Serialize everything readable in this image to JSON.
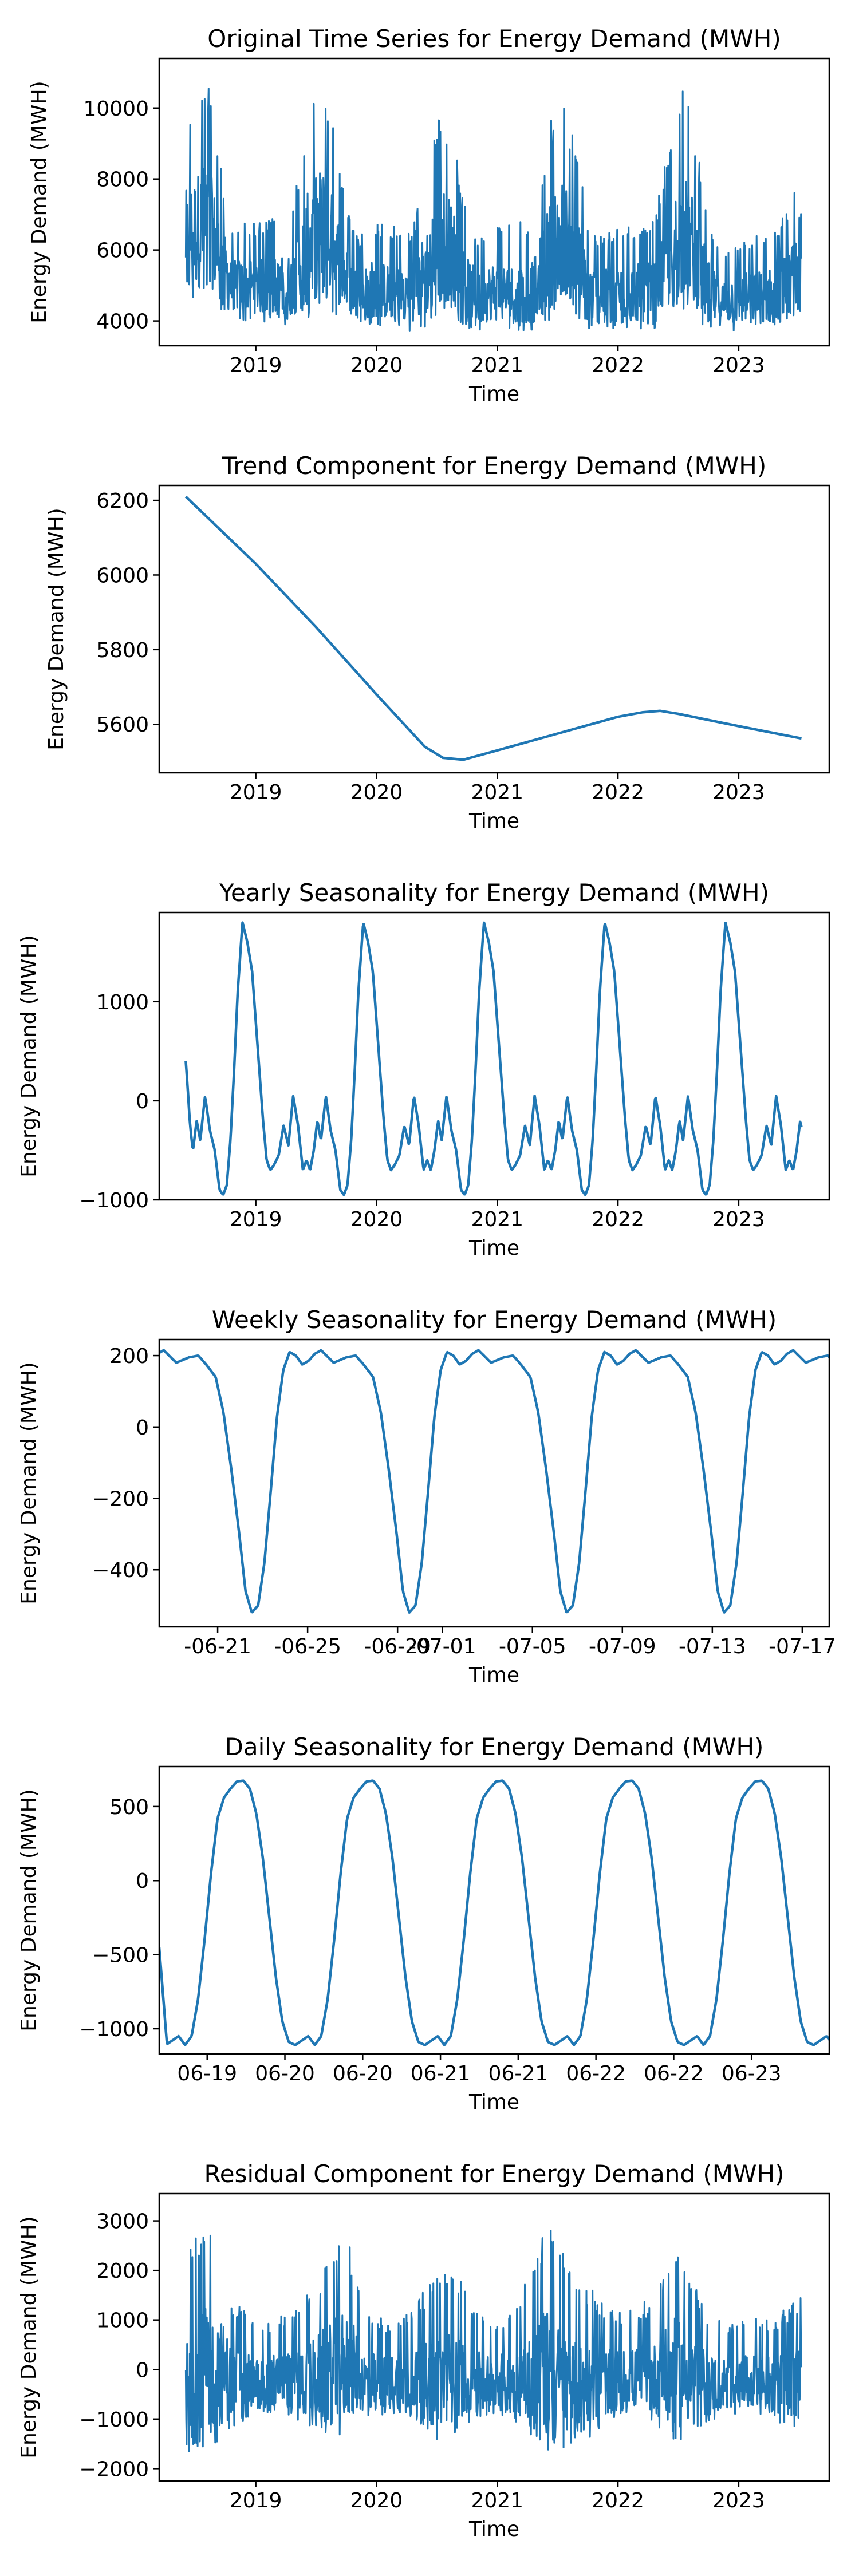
{
  "chart_data": [
    {
      "type": "line",
      "title": "Original Time Series for Energy Demand (MWH)",
      "xlabel": "Time",
      "ylabel": "Energy Demand (MWH)",
      "xlim": [
        2018.2,
        2023.75
      ],
      "ylim": [
        3300,
        11400
      ],
      "xticks": [
        2019,
        2020,
        2021,
        2022,
        2023
      ],
      "xticklabels": [
        "2019",
        "2020",
        "2021",
        "2022",
        "2023"
      ],
      "yticks": [
        4000,
        6000,
        8000,
        10000
      ],
      "yticklabels": [
        "4000",
        "6000",
        "8000",
        "10000"
      ],
      "color": "#1f77b4",
      "grid": false,
      "series": [
        {
          "x": [
            2018.42,
            2018.5,
            2018.6,
            2018.7,
            2018.8,
            2018.9,
            2019.0,
            2019.15,
            2019.3,
            2019.45,
            2019.55,
            2019.65,
            2019.75,
            2019.85,
            2019.95,
            2020.1,
            2020.3,
            2020.45,
            2020.55,
            2020.65,
            2020.75,
            2020.85,
            2020.95,
            2021.1,
            2021.3,
            2021.45,
            2021.55,
            2021.65,
            2021.75,
            2021.85,
            2021.95,
            2022.1,
            2022.3,
            2022.45,
            2022.55,
            2022.65,
            2022.75,
            2022.85,
            2022.95,
            2023.1,
            2023.3,
            2023.45,
            2023.52
          ],
          "y": [
            9500,
            10400,
            11000,
            8600,
            6600,
            6900,
            6800,
            6900,
            7100,
            10200,
            10900,
            9400,
            7300,
            6300,
            6800,
            6700,
            6600,
            9000,
            10100,
            8900,
            7000,
            6300,
            6800,
            6700,
            6900,
            9700,
            10300,
            9000,
            6900,
            6400,
            6600,
            6700,
            6800,
            9700,
            10600,
            9100,
            6900,
            6000,
            6300,
            6400,
            6600,
            7600,
            9300
          ],
          "y_low": [
            4600,
            4400,
            4600,
            4300,
            4100,
            4000,
            4000,
            3900,
            3900,
            4000,
            4300,
            4200,
            4000,
            3900,
            3900,
            3800,
            3700,
            3800,
            4200,
            4100,
            3800,
            3700,
            3800,
            3700,
            3700,
            4000,
            4300,
            4000,
            3700,
            3700,
            3700,
            3800,
            3700,
            4000,
            4300,
            4000,
            3700,
            3700,
            3700,
            3700,
            3700,
            3800,
            3900
          ]
        }
      ]
    },
    {
      "type": "line",
      "title": "Trend Component for Energy Demand (MWH)",
      "xlabel": "Time",
      "ylabel": "Energy Demand (MWH)",
      "xlim": [
        2018.2,
        2023.75
      ],
      "ylim": [
        5470,
        6240
      ],
      "xticks": [
        2019,
        2020,
        2021,
        2022,
        2023
      ],
      "xticklabels": [
        "2019",
        "2020",
        "2021",
        "2022",
        "2023"
      ],
      "yticks": [
        5600,
        5800,
        6000,
        6200
      ],
      "yticklabels": [
        "5600",
        "5800",
        "6000",
        "6200"
      ],
      "color": "#1f77b4",
      "grid": false,
      "series": [
        {
          "x": [
            2018.42,
            2019.0,
            2019.5,
            2020.0,
            2020.4,
            2020.55,
            2020.72,
            2021.0,
            2021.5,
            2022.0,
            2022.2,
            2022.35,
            2022.5,
            2023.0,
            2023.52
          ],
          "y": [
            6210,
            6030,
            5860,
            5680,
            5540,
            5510,
            5505,
            5530,
            5575,
            5620,
            5632,
            5636,
            5628,
            5595,
            5562
          ]
        }
      ]
    },
    {
      "type": "line",
      "title": "Yearly Seasonality for Energy Demand (MWH)",
      "xlabel": "Time",
      "ylabel": "Energy Demand (MWH)",
      "xlim": [
        2018.2,
        2023.75
      ],
      "ylim": [
        -1000,
        1900
      ],
      "xticks": [
        2019,
        2020,
        2021,
        2022,
        2023
      ],
      "xticklabels": [
        "2019",
        "2020",
        "2021",
        "2022",
        "2023"
      ],
      "yticks": [
        -1000,
        0,
        1000
      ],
      "yticklabels": [
        "−1000",
        "0",
        "1000"
      ],
      "color": "#1f77b4",
      "grid": false,
      "series": [
        {
          "x_start": 2018.42,
          "x_end": 2023.52,
          "period": 1.0,
          "cycle_phase": [
            0.0,
            0.03,
            0.06,
            0.09,
            0.12,
            0.16,
            0.2,
            0.24,
            0.28,
            0.31,
            0.34,
            0.37,
            0.4,
            0.43,
            0.47,
            0.51,
            0.55,
            0.58,
            0.61,
            0.64,
            0.67,
            0.7,
            0.73,
            0.77,
            0.81,
            0.85,
            0.89,
            0.93,
            0.97,
            1.0
          ],
          "cycle_values": [
            -600,
            -700,
            -500,
            -200,
            -400,
            50,
            -300,
            -500,
            -900,
            -950,
            -850,
            -400,
            300,
            1100,
            1800,
            1600,
            1300,
            800,
            300,
            -200,
            -600,
            -700,
            -650,
            -550,
            -250,
            -450,
            50,
            -250,
            -700,
            -600
          ],
          "start_value": 400
        }
      ]
    },
    {
      "type": "line",
      "title": "Weekly Seasonality for Energy Demand (MWH)",
      "xlabel": "Time",
      "ylabel": "Energy Demand (MWH)",
      "xlim": [
        18.4,
        48.2
      ],
      "ylim": [
        -560,
        245
      ],
      "xticks": [
        21,
        25,
        29,
        31,
        35,
        39,
        43,
        47
      ],
      "xticklabels": [
        "-06-21",
        "-06-25",
        "-06-29",
        "-07-01",
        "-07-05",
        "-07-09",
        "-07-13",
        "-07-17"
      ],
      "yticks": [
        -400,
        -200,
        0,
        200
      ],
      "yticklabels": [
        "−400",
        "−200",
        "0",
        "200"
      ],
      "color": "#1f77b4",
      "grid": false,
      "series": [
        {
          "period": 7,
          "x_start": 18.4,
          "x_end": 48.2,
          "cycle_x0": 18.6,
          "cycle_phase": [
            0.0,
            0.08,
            0.16,
            0.22,
            0.27,
            0.33,
            0.38,
            0.43,
            0.48,
            0.52,
            0.56,
            0.6,
            0.64,
            0.68,
            0.72,
            0.76,
            0.8,
            0.84,
            0.88,
            0.92,
            0.96,
            1.0
          ],
          "cycle_values": [
            215,
            180,
            195,
            200,
            175,
            140,
            40,
            -120,
            -300,
            -460,
            -520,
            -500,
            -380,
            -180,
            30,
            160,
            210,
            200,
            175,
            185,
            205,
            215
          ]
        }
      ]
    },
    {
      "type": "line",
      "title": "Daily Seasonality for Energy Demand (MWH)",
      "xlabel": "Time",
      "ylabel": "Energy Demand (MWH)",
      "xlim": [
        18.55,
        23.72
      ],
      "ylim": [
        -1170,
        770
      ],
      "xticks": [
        18.92,
        19.52,
        20.12,
        20.72,
        21.32,
        21.92,
        22.52,
        23.12
      ],
      "xticklabels": [
        "06-19",
        "06-20",
        "06-20",
        "06-21",
        "06-21",
        "06-22",
        "06-22",
        "06-23"
      ],
      "yticks": [
        -1000,
        -500,
        0,
        500
      ],
      "yticklabels": [
        "−1000",
        "−500",
        "0",
        "500"
      ],
      "color": "#1f77b4",
      "grid": false,
      "series": [
        {
          "period": 1.0,
          "x_start": 18.55,
          "x_end": 23.72,
          "cycle_x0": 18.7,
          "cycle_phase": [
            0.0,
            0.05,
            0.1,
            0.15,
            0.2,
            0.25,
            0.3,
            0.35,
            0.4,
            0.45,
            0.5,
            0.55,
            0.6,
            0.65,
            0.7,
            0.75,
            0.8,
            0.85,
            0.9,
            0.95,
            1.0
          ],
          "cycle_values": [
            -1050,
            -1110,
            -1050,
            -800,
            -400,
            50,
            420,
            560,
            620,
            670,
            675,
            620,
            450,
            150,
            -250,
            -650,
            -950,
            -1090,
            -1110,
            -1080,
            -1050
          ],
          "start_value": -450
        }
      ]
    },
    {
      "type": "line",
      "title": "Residual Component for Energy Demand (MWH)",
      "xlabel": "Time",
      "ylabel": "Energy Demand (MWH)",
      "xlim": [
        2018.2,
        2023.75
      ],
      "ylim": [
        -2250,
        3550
      ],
      "xticks": [
        2019,
        2020,
        2021,
        2022,
        2023
      ],
      "xticklabels": [
        "2019",
        "2020",
        "2021",
        "2022",
        "2023"
      ],
      "yticks": [
        -2000,
        -1000,
        0,
        1000,
        2000,
        3000
      ],
      "yticklabels": [
        "−2000",
        "−1000",
        "0",
        "1000",
        "2000",
        "3000"
      ],
      "color": "#1f77b4",
      "grid": false,
      "series": [
        {
          "x": [
            2018.42,
            2018.55,
            2018.65,
            2018.8,
            2019.0,
            2019.2,
            2019.4,
            2019.6,
            2019.75,
            2019.9,
            2020.1,
            2020.3,
            2020.5,
            2020.65,
            2020.8,
            2021.0,
            2021.2,
            2021.4,
            2021.5,
            2021.6,
            2021.75,
            2021.9,
            2022.1,
            2022.3,
            2022.5,
            2022.6,
            2022.75,
            2022.9,
            2023.1,
            2023.3,
            2023.52
          ],
          "y": [
            2300,
            2900,
            3300,
            1500,
            900,
            1100,
            1400,
            2300,
            2800,
            1200,
            1000,
            1300,
            1900,
            2200,
            1200,
            1000,
            1500,
            3000,
            2700,
            2000,
            1700,
            1300,
            1200,
            1500,
            2700,
            1900,
            1200,
            900,
            1000,
            1100,
            1500
          ],
          "y_low": [
            -1900,
            -1800,
            -1600,
            -1200,
            -900,
            -900,
            -1100,
            -1400,
            -1300,
            -1000,
            -900,
            -1000,
            -1500,
            -1300,
            -1000,
            -900,
            -1100,
            -1700,
            -2000,
            -1800,
            -1400,
            -1100,
            -900,
            -1100,
            -1500,
            -1300,
            -1100,
            -900,
            -900,
            -1100,
            -1200
          ]
        }
      ]
    }
  ]
}
